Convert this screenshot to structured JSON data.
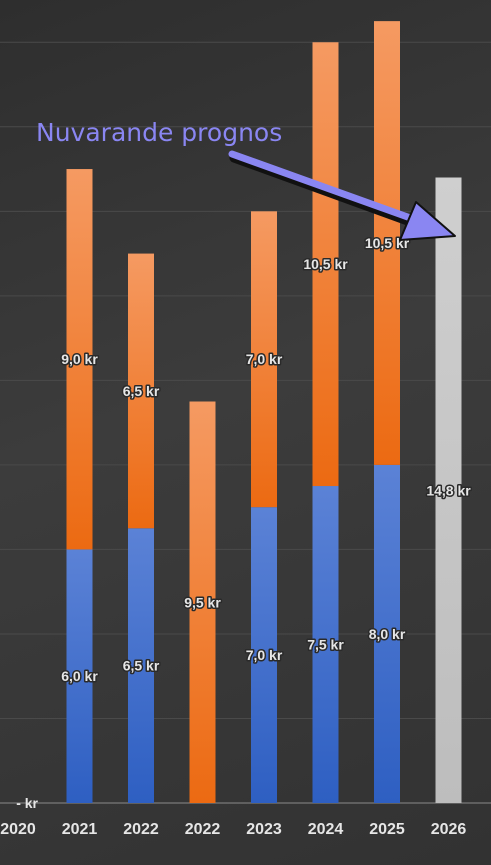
{
  "chart_data": {
    "type": "bar",
    "stacked": true,
    "categories": [
      "2020",
      "2021",
      "2022",
      "2022",
      "2023",
      "2024",
      "2025",
      "2026"
    ],
    "series": [
      {
        "color": "#4a72cc",
        "values": [
          0,
          6.0,
          6.5,
          0,
          7.0,
          7.5,
          8.0,
          0
        ],
        "labels": [
          "",
          "6,0 kr",
          "6,5 kr",
          "",
          "7,0 kr",
          "7,5 kr",
          "8,0 kr",
          ""
        ]
      },
      {
        "color": "#f07a2a",
        "values": [
          0,
          9.0,
          6.5,
          9.5,
          7.0,
          10.5,
          10.5,
          0
        ],
        "labels": [
          "",
          "9,0 kr",
          "6,5 kr",
          "9,5 kr",
          "7,0 kr",
          "10,5 kr",
          "10,5 kr",
          ""
        ]
      },
      {
        "color": "#c6c6c6",
        "values": [
          0,
          0,
          0,
          0,
          0,
          0,
          0,
          14.8
        ],
        "labels": [
          "",
          "",
          "",
          "",
          "",
          "",
          "",
          "14,8 kr"
        ]
      }
    ],
    "zero_label": "-   kr",
    "ylim": [
      0,
      19
    ],
    "grid": true,
    "legend": "none",
    "annotation": {
      "text": "Nuvarande prognos",
      "color": "#8a86f2",
      "points_to": "2026"
    }
  }
}
